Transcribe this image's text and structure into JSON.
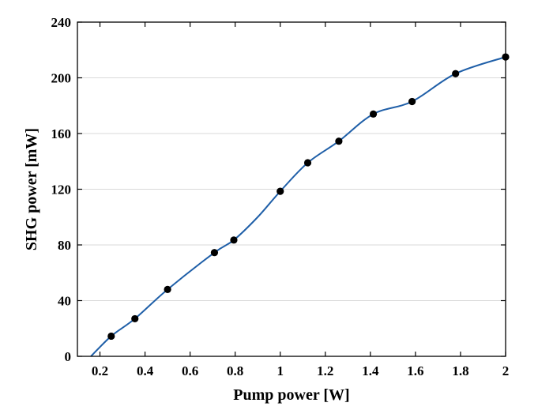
{
  "chart_data": {
    "type": "scatter",
    "title": "",
    "xlabel": "Pump power [W]",
    "ylabel": "SHG power [mW]",
    "xlim": [
      0.1,
      2.0
    ],
    "ylim": [
      0,
      240
    ],
    "xticks": [
      0.2,
      0.4,
      0.6,
      0.8,
      1.0,
      1.2,
      1.4,
      1.6,
      1.8,
      2.0
    ],
    "xtick_labels": [
      "0.2",
      "0.4",
      "0.6",
      "0.8",
      "1",
      "1.2",
      "1.4",
      "1.6",
      "1.8",
      "2"
    ],
    "yticks": [
      0,
      40,
      80,
      120,
      160,
      200,
      240
    ],
    "ytick_labels": [
      "0",
      "40",
      "80",
      "120",
      "160",
      "200",
      "240"
    ],
    "grid": "horizontal",
    "series": [
      {
        "kind": "points",
        "color": "#000000",
        "x": [
          0.25,
          0.355,
          0.5,
          0.708,
          0.794,
          1.0,
          1.122,
          1.26,
          1.413,
          1.585,
          1.778,
          2.0
        ],
        "y": [
          14.5,
          27,
          48,
          74.5,
          83.5,
          118.5,
          139,
          154.5,
          174,
          183,
          203,
          215
        ]
      },
      {
        "kind": "fit",
        "color": "#1f5fa8",
        "x": [
          0.16,
          0.25,
          0.355,
          0.5,
          0.708,
          0.794,
          0.9,
          1.0,
          1.122,
          1.26,
          1.413,
          1.585,
          1.778,
          2.0
        ],
        "y": [
          0,
          14.5,
          27,
          48,
          74.5,
          83.5,
          100,
          118.5,
          139,
          154.5,
          174,
          183,
          203,
          215
        ]
      }
    ]
  }
}
